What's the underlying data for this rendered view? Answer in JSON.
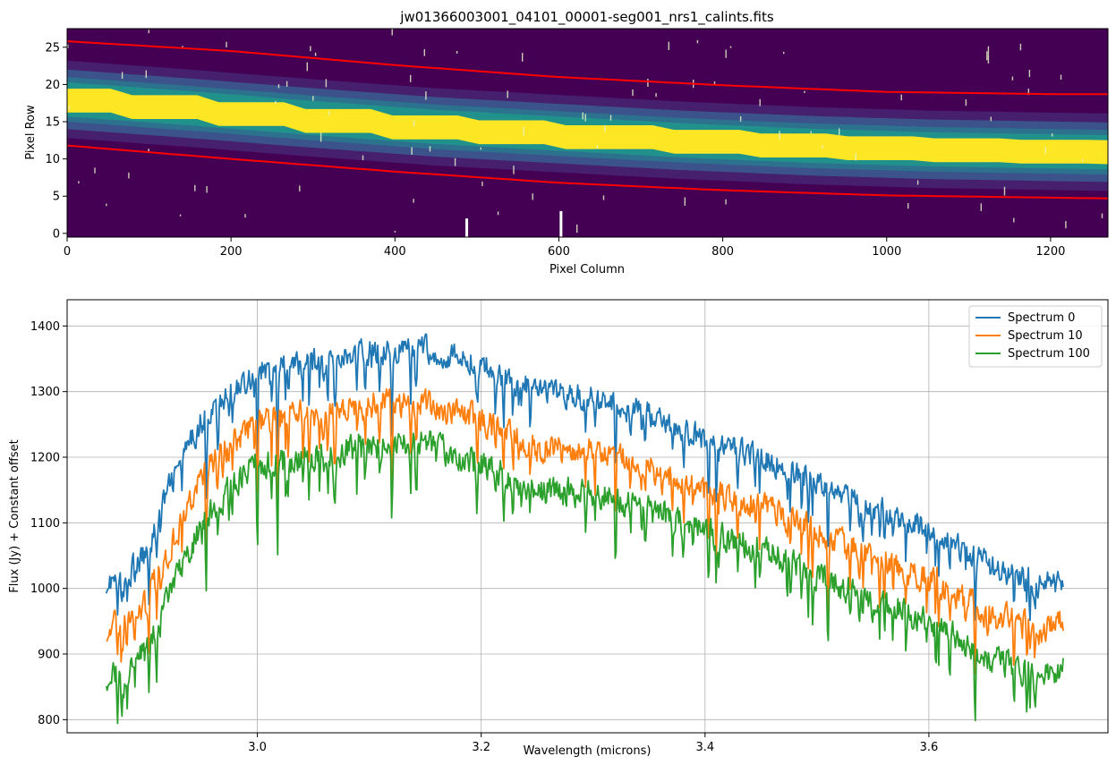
{
  "chart_data": [
    {
      "type": "heatmap",
      "title": "jw01366003001_04101_00001-seg001_nrs1_calints.fits",
      "xlabel": "Pixel Column",
      "ylabel": "Pixel Row",
      "xlim": [
        0,
        1270
      ],
      "ylim": [
        -0.5,
        27.5
      ],
      "xticks": [
        0,
        200,
        400,
        600,
        800,
        1000,
        1200
      ],
      "yticks": [
        0,
        5,
        10,
        15,
        20,
        25
      ],
      "colormap": "viridis",
      "trace_center": [
        [
          0,
          18.0
        ],
        [
          150,
          16.8
        ],
        [
          300,
          15.5
        ],
        [
          450,
          14.3
        ],
        [
          600,
          13.4
        ],
        [
          750,
          12.5
        ],
        [
          900,
          11.8
        ],
        [
          1050,
          11.3
        ],
        [
          1270,
          10.9
        ]
      ],
      "trace_halfwidth": 1.6,
      "upper_aperture": [
        [
          0,
          25.8
        ],
        [
          200,
          24.5
        ],
        [
          400,
          22.6
        ],
        [
          600,
          21.0
        ],
        [
          800,
          19.9
        ],
        [
          1000,
          19.0
        ],
        [
          1200,
          18.7
        ],
        [
          1270,
          18.7
        ]
      ],
      "lower_aperture": [
        [
          0,
          11.8
        ],
        [
          200,
          10.0
        ],
        [
          400,
          8.3
        ],
        [
          600,
          6.8
        ],
        [
          800,
          5.8
        ],
        [
          1000,
          5.1
        ],
        [
          1200,
          4.8
        ],
        [
          1270,
          4.7
        ]
      ],
      "aperture_color": "#ff0000"
    },
    {
      "type": "line",
      "xlabel": "Wavelength (microns)",
      "ylabel": "Flux (Jy) + Constant offset",
      "xlim": [
        2.83,
        3.76
      ],
      "ylim": [
        780,
        1440
      ],
      "xticks": [
        3.0,
        3.2,
        3.4,
        3.6
      ],
      "xtick_labels": [
        "3.0",
        "3.2",
        "3.4",
        "3.6"
      ],
      "yticks": [
        800,
        900,
        1000,
        1100,
        1200,
        1300,
        1400
      ],
      "grid": true,
      "legend": "top-right",
      "x_range": [
        2.865,
        3.72
      ],
      "series": [
        {
          "name": "Spectrum 0",
          "color": "#1f77b4",
          "noise": 22,
          "envelope": [
            [
              2.865,
              1010
            ],
            [
              2.88,
              1015
            ],
            [
              2.9,
              1050
            ],
            [
              2.92,
              1150
            ],
            [
              2.95,
              1255
            ],
            [
              2.98,
              1305
            ],
            [
              3.0,
              1330
            ],
            [
              3.05,
              1345
            ],
            [
              3.1,
              1360
            ],
            [
              3.15,
              1365
            ],
            [
              3.2,
              1340
            ],
            [
              3.25,
              1300
            ],
            [
              3.3,
              1290
            ],
            [
              3.35,
              1265
            ],
            [
              3.4,
              1225
            ],
            [
              3.45,
              1200
            ],
            [
              3.5,
              1165
            ],
            [
              3.55,
              1125
            ],
            [
              3.6,
              1090
            ],
            [
              3.65,
              1040
            ],
            [
              3.7,
              1005
            ],
            [
              3.72,
              1010
            ]
          ]
        },
        {
          "name": "Spectrum 10",
          "color": "#ff7f0e",
          "noise": 24,
          "envelope": [
            [
              2.865,
              940
            ],
            [
              2.88,
              945
            ],
            [
              2.9,
              975
            ],
            [
              2.92,
              1055
            ],
            [
              2.95,
              1170
            ],
            [
              2.98,
              1225
            ],
            [
              3.0,
              1255
            ],
            [
              3.05,
              1265
            ],
            [
              3.1,
              1280
            ],
            [
              3.15,
              1285
            ],
            [
              3.2,
              1255
            ],
            [
              3.25,
              1215
            ],
            [
              3.3,
              1210
            ],
            [
              3.35,
              1185
            ],
            [
              3.4,
              1150
            ],
            [
              3.45,
              1125
            ],
            [
              3.5,
              1085
            ],
            [
              3.55,
              1050
            ],
            [
              3.6,
              1015
            ],
            [
              3.65,
              965
            ],
            [
              3.7,
              935
            ],
            [
              3.72,
              950
            ]
          ]
        },
        {
          "name": "Spectrum 100",
          "color": "#2ca02c",
          "noise": 24,
          "envelope": [
            [
              2.865,
              870
            ],
            [
              2.88,
              870
            ],
            [
              2.9,
              905
            ],
            [
              2.92,
              985
            ],
            [
              2.95,
              1100
            ],
            [
              2.98,
              1160
            ],
            [
              3.0,
              1190
            ],
            [
              3.05,
              1200
            ],
            [
              3.1,
              1215
            ],
            [
              3.15,
              1220
            ],
            [
              3.2,
              1190
            ],
            [
              3.25,
              1150
            ],
            [
              3.3,
              1145
            ],
            [
              3.35,
              1120
            ],
            [
              3.4,
              1085
            ],
            [
              3.45,
              1060
            ],
            [
              3.5,
              1020
            ],
            [
              3.55,
              985
            ],
            [
              3.6,
              950
            ],
            [
              3.65,
              900
            ],
            [
              3.7,
              865
            ],
            [
              3.72,
              875
            ]
          ]
        }
      ]
    }
  ]
}
